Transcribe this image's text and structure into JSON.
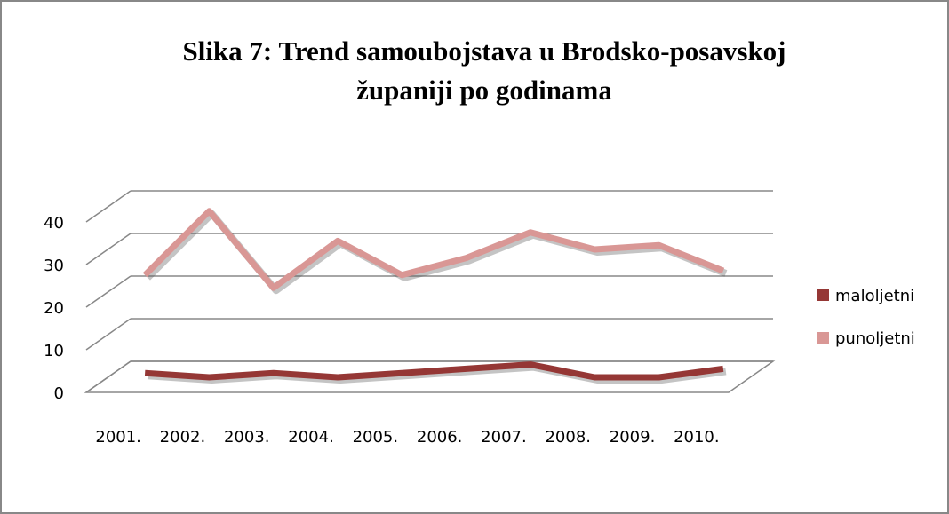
{
  "chart_data": {
    "type": "line",
    "title": "Slika 7: Trend samoubojstava u Brodsko-posavskoj",
    "subtitle": "županiji po godinama",
    "categories": [
      "2001.",
      "2002.",
      "2003.",
      "2004.",
      "2005.",
      "2006.",
      "2007.",
      "2008.",
      "2009.",
      "2010."
    ],
    "series": [
      {
        "name": "maloljetni",
        "color": "#953735",
        "values": [
          1,
          0,
          1,
          0,
          1,
          2,
          3,
          0,
          0,
          2
        ]
      },
      {
        "name": "punoljetni",
        "color": "#d99795",
        "values": [
          24,
          39,
          21,
          32,
          24,
          28,
          34,
          30,
          31,
          25
        ]
      }
    ],
    "ylim": [
      0,
      40
    ],
    "yticks": [
      0,
      10,
      20,
      30,
      40
    ],
    "grid": true,
    "legend": "right"
  }
}
